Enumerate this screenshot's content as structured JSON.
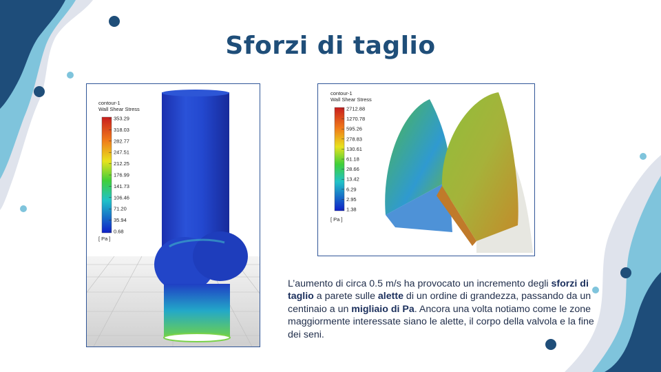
{
  "slide": {
    "title": "Sforzi di taglio",
    "accent_colors": {
      "dark_blue": "#1f4e79",
      "light_blue": "#7fc4dc",
      "navy": "#1e4d7a"
    }
  },
  "figure_left": {
    "legend_title_1": "contour-1",
    "legend_title_2": "Wall Shear Stress",
    "ticks": [
      "353.29",
      "318.03",
      "282.77",
      "247.51",
      "212.25",
      "176.99",
      "141.73",
      "106.46",
      "71.20",
      "35.94",
      "0.68"
    ],
    "unit": "[ Pa ]"
  },
  "figure_right": {
    "legend_title_1": "contour-1",
    "legend_title_2": "Wall Shear Stress",
    "ticks": [
      "2712.88",
      "1270.78",
      "595.26",
      "278.83",
      "130.61",
      "61.18",
      "28.66",
      "13.42",
      "6.29",
      "2.95",
      "1.38"
    ],
    "unit": "[ Pa ]"
  },
  "paragraph": {
    "s1": "L’aumento di circa 0.5 m/s ha provocato un incremento degli ",
    "b1": "sforzi di taglio",
    "s2": " a parete sulle ",
    "b2": "alette",
    "s3": " di un ordine di grandezza, passando da un centinaio a un ",
    "b3": "migliaio  di Pa",
    "s4": ". Ancora una volta notiamo come le zone maggiormente interessate siano le alette, il corpo della valvola  e la fine dei seni."
  }
}
